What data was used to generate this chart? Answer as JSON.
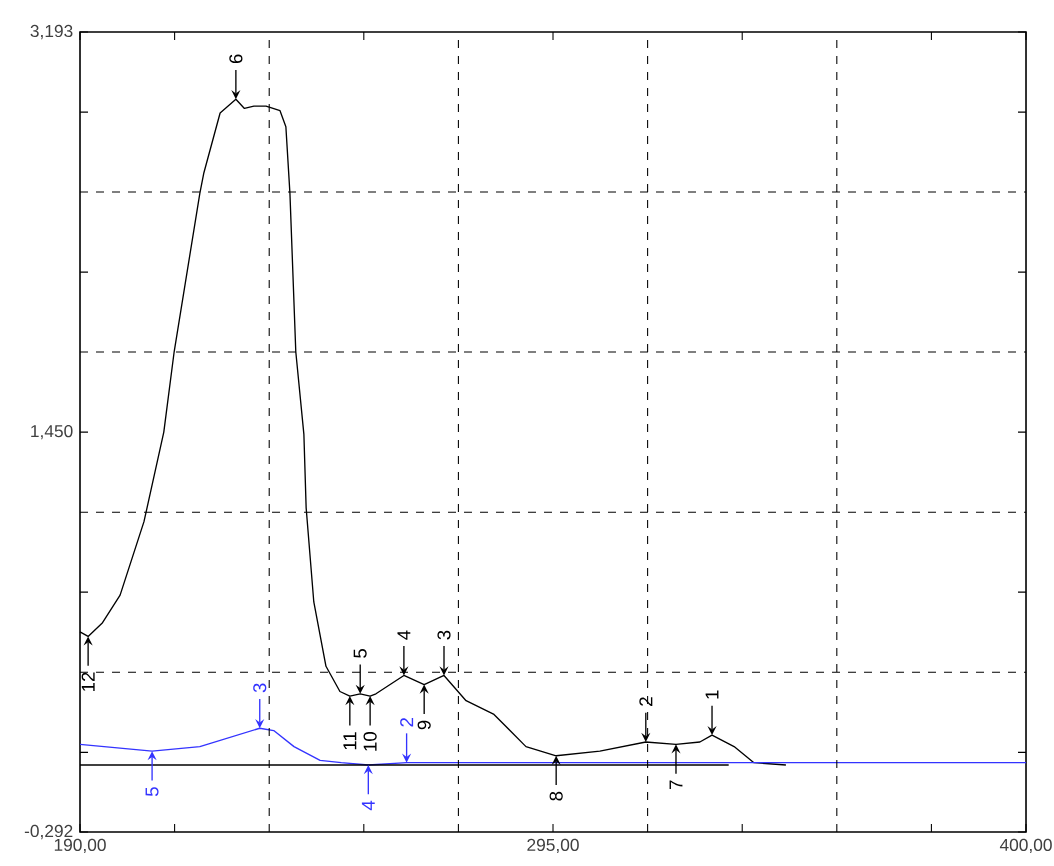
{
  "chart_data": {
    "type": "line",
    "xlim": [
      190,
      400
    ],
    "ylim": [
      -0.292,
      3.193
    ],
    "xticks": [
      {
        "value": 190,
        "label": "190,00"
      },
      {
        "value": 211,
        "label": null
      },
      {
        "value": 253,
        "label": null
      },
      {
        "value": 295,
        "label": "295,00"
      },
      {
        "value": 337,
        "label": null
      },
      {
        "value": 379,
        "label": null
      },
      {
        "value": 400,
        "label": "400,00"
      }
    ],
    "yticks": [
      {
        "value": -0.292,
        "label": "-0,292"
      },
      {
        "value": 0.055,
        "label": null
      },
      {
        "value": 0.753,
        "label": null
      },
      {
        "value": 1.45,
        "label": "1,450"
      },
      {
        "value": 2.147,
        "label": null
      },
      {
        "value": 2.844,
        "label": null
      },
      {
        "value": 3.193,
        "label": "3,193"
      }
    ],
    "ref_lines": [
      {
        "axis": "x",
        "value": 232,
        "color": "#000000",
        "line_style": "dashed"
      },
      {
        "axis": "x",
        "value": 274,
        "color": "#000000",
        "line_style": "dashed"
      },
      {
        "axis": "x",
        "value": 316,
        "color": "#000000",
        "line_style": "dashed"
      },
      {
        "axis": "x",
        "value": 358,
        "color": "#000000",
        "line_style": "dashed"
      },
      {
        "axis": "y",
        "value": 0.404,
        "color": "#000000",
        "line_style": "dashed"
      },
      {
        "axis": "y",
        "value": 1.101,
        "color": "#000000",
        "line_style": "dashed"
      },
      {
        "axis": "y",
        "value": 1.799,
        "color": "#000000",
        "line_style": "dashed"
      },
      {
        "axis": "y",
        "value": 2.496,
        "color": "#000000",
        "line_style": "dashed"
      }
    ],
    "annotations": [
      {
        "text": "12",
        "x": 191.8,
        "y": 0.56
      },
      {
        "text": "6",
        "x": 224.6,
        "y": 2.9
      },
      {
        "text": "11",
        "x": 249.9,
        "y": 0.3
      },
      {
        "text": "5",
        "x": 252.2,
        "y": 0.31
      },
      {
        "text": "10",
        "x": 254.4,
        "y": 0.3
      },
      {
        "text": "4",
        "x": 261.9,
        "y": 0.39
      },
      {
        "text": "9",
        "x": 266.4,
        "y": 0.35
      },
      {
        "text": "3",
        "x": 270.8,
        "y": 0.39
      },
      {
        "text": "8",
        "x": 295.7,
        "y": 0.04
      },
      {
        "text": "2",
        "x": 315.6,
        "y": 0.1
      },
      {
        "text": "7",
        "x": 322.3,
        "y": 0.09
      },
      {
        "text": "1",
        "x": 330.3,
        "y": 0.13
      },
      {
        "text": "5",
        "x": 206,
        "y": 0.06
      },
      {
        "text": "3",
        "x": 229.9,
        "y": 0.16
      },
      {
        "text": "4",
        "x": 254,
        "y": 0.0
      },
      {
        "text": "2",
        "x": 262.5,
        "y": 0.01
      }
    ],
    "series": [
      {
        "color": "#000000",
        "x": [
          190,
          191.8,
          195,
          198.9,
          204.2,
          208.6,
          210.9,
          216.6,
          217.5,
          221.1,
          224.6,
          226.5,
          228.6,
          231.3,
          234.4,
          235.7,
          236.6,
          237.9,
          239.7,
          240.2,
          241.9,
          244.6,
          247.7,
          249.9,
          252.2,
          254.4,
          255.7,
          261.9,
          266.4,
          270.8,
          275.7,
          281.9,
          289.0,
          295.7,
          305.4,
          315.6,
          322.3,
          327.6,
          330.3,
          335.2,
          339.6,
          346.7
        ],
        "values": [
          0.58,
          0.56,
          0.62,
          0.74,
          1.06,
          1.45,
          1.8,
          2.49,
          2.58,
          2.84,
          2.9,
          2.86,
          2.87,
          2.87,
          2.85,
          2.78,
          2.49,
          1.8,
          1.44,
          1.12,
          0.71,
          0.43,
          0.32,
          0.3,
          0.31,
          0.3,
          0.31,
          0.39,
          0.35,
          0.39,
          0.28,
          0.22,
          0.08,
          0.04,
          0.06,
          0.1,
          0.09,
          0.1,
          0.13,
          0.08,
          0.01,
          0.0
        ]
      },
      {
        "color": "#3333ff",
        "x": [
          190,
          206,
          216.6,
          229.9,
          233,
          237.5,
          243.3,
          248,
          254,
          262.5,
          400
        ],
        "values": [
          0.09,
          0.06,
          0.08,
          0.16,
          0.15,
          0.08,
          0.02,
          0.01,
          0.0,
          0.01,
          0.01
        ]
      },
      {
        "color": "#000000",
        "x": [
          190,
          334
        ],
        "values": [
          0,
          0
        ]
      }
    ]
  }
}
